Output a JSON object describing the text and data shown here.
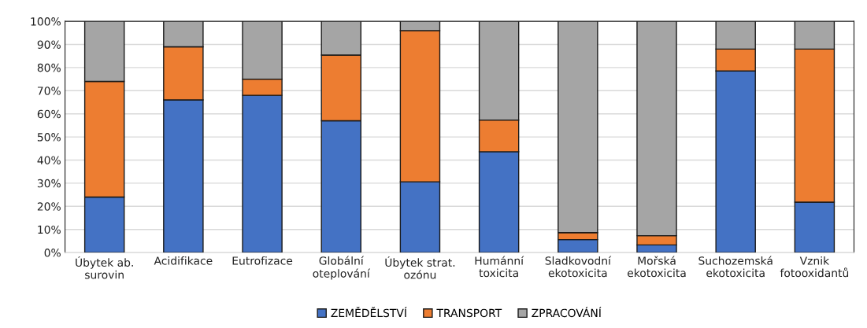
{
  "chart_data": {
    "type": "bar",
    "stacked": true,
    "categories": [
      "Úbytek ab.\nsurovin",
      "Acidifikace",
      "Eutrofizace",
      "Globální\noteplování",
      "Úbytek strat.\nozónu",
      "Humánní\ntoxicita",
      "Sladkovodní\nekotoxicita",
      "Mořská\nekotoxicita",
      "Suchozemská\nekotoxicita",
      "Vznik\nfotooxidantů"
    ],
    "series": [
      {
        "name": "ZEMĚDĚLSTVÍ",
        "color": "#4472c4",
        "values": [
          24,
          66,
          68,
          57,
          30.6,
          43.6,
          5.6,
          3.3,
          78.5,
          21.8
        ]
      },
      {
        "name": "TRANSPORT",
        "color": "#ed7d31",
        "values": [
          50,
          23,
          7,
          28.4,
          65.4,
          13.7,
          3,
          4,
          9.5,
          66.2
        ]
      },
      {
        "name": "ZPRACOVÁNÍ",
        "color": "#a5a5a5",
        "values": [
          26,
          11,
          25,
          14.6,
          4,
          42.7,
          91.4,
          92.7,
          12,
          12
        ]
      }
    ],
    "ylim": [
      0,
      100
    ],
    "yticks": [
      {
        "value": 0,
        "label": "0%"
      },
      {
        "value": 10,
        "label": "10%"
      },
      {
        "value": 20,
        "label": "20%"
      },
      {
        "value": 30,
        "label": "30%"
      },
      {
        "value": 40,
        "label": "40%"
      },
      {
        "value": 50,
        "label": "50%"
      },
      {
        "value": 60,
        "label": "60%"
      },
      {
        "value": 70,
        "label": "70%"
      },
      {
        "value": 80,
        "label": "80%"
      },
      {
        "value": 90,
        "label": "90%"
      },
      {
        "value": 100,
        "label": "100%"
      }
    ],
    "grid": "y",
    "legend": "bottom"
  }
}
